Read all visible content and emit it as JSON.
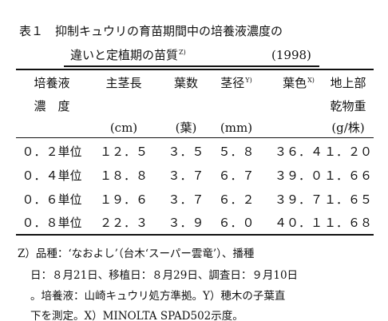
{
  "title": {
    "line1": "表１　抑制キュウリの育苗期間中の培養液濃度の",
    "line2": "違いと定植期の苗質",
    "line2_note": "Z)",
    "year": "(1998)"
  },
  "table": {
    "headers": [
      {
        "line1": "培養液",
        "line2": "濃　度"
      },
      {
        "line1": "主茎長"
      },
      {
        "line1": "葉数"
      },
      {
        "line1": "茎径",
        "note": "Y)"
      },
      {
        "line1": "葉色",
        "note": "X)"
      },
      {
        "line1": "地上部",
        "line2": "乾物重"
      }
    ],
    "units": [
      null,
      "(cm)",
      "(葉)",
      "(mm)",
      null,
      "(g/株)"
    ],
    "rows": [
      [
        "０．２単位",
        "１２．５",
        "３．５",
        "５．８",
        "３６．４",
        "１．２０"
      ],
      [
        "０．４単位",
        "１８．８",
        "３．７",
        "６．７",
        "３９．０",
        "１．６６"
      ],
      [
        "０．６単位",
        "１９．６",
        "３．７",
        "６．２",
        "３９．７",
        "１．６５"
      ],
      [
        "０．８単位",
        "２２．３",
        "３．９",
        "６．０",
        "４０．１",
        "１．６８"
      ]
    ]
  },
  "notes": [
    "Z）品種：‘なおよし’（台木‘スーパー雲竜’）、播種",
    "日：８月21日、移植日：８月29日、調査日：９月10日",
    "。培養液：山崎キュウリ処方準拠。Y）穂木の子葉直",
    "下を測定。X）MINOLTA SPAD502示度。"
  ]
}
